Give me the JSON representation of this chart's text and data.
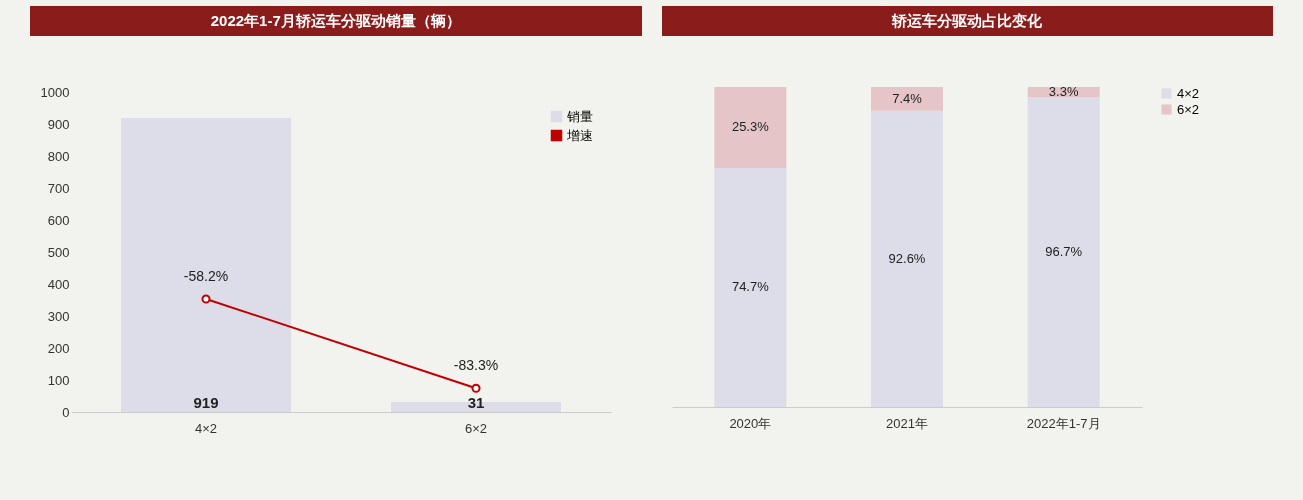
{
  "chart_data": [
    {
      "type": "bar",
      "title": "2022年1-7月轿运车分驱动销量（辆）",
      "categories": [
        "4×2",
        "6×2"
      ],
      "series": [
        {
          "name": "销量",
          "color": "#dcdde8",
          "values": [
            919,
            31
          ],
          "value_labels": [
            "919",
            "31"
          ]
        },
        {
          "name": "增速",
          "type": "line",
          "axis": "y2",
          "color": "#c00000",
          "values": [
            -58.2,
            -83.3
          ],
          "value_labels": [
            "-58.2%",
            "-83.3%"
          ]
        }
      ],
      "ylim": [
        0,
        1000
      ],
      "yticks": [
        0,
        100,
        200,
        300,
        400,
        500,
        600,
        700,
        800,
        900,
        1000
      ],
      "y2lim": [
        -90,
        0
      ],
      "legend": "top right",
      "marker": "circle"
    },
    {
      "type": "bar",
      "title": "轿运车分驱动占比变化",
      "categories": [
        "2020年",
        "2021年",
        "2022年1-7月"
      ],
      "stacked": true,
      "series": [
        {
          "name": "4×2",
          "color": "#dcdde8",
          "values": [
            74.7,
            92.6,
            96.7
          ],
          "value_labels": [
            "74.7%",
            "92.6%",
            "96.7%"
          ]
        },
        {
          "name": "6×2",
          "color": "#e6c5c9",
          "values": [
            25.3,
            7.4,
            3.3
          ],
          "value_labels": [
            "25.3%",
            "7.4%",
            "3.3%"
          ]
        }
      ],
      "ylim": [
        0,
        100
      ],
      "tick_labels": "x",
      "legend": "right"
    }
  ]
}
